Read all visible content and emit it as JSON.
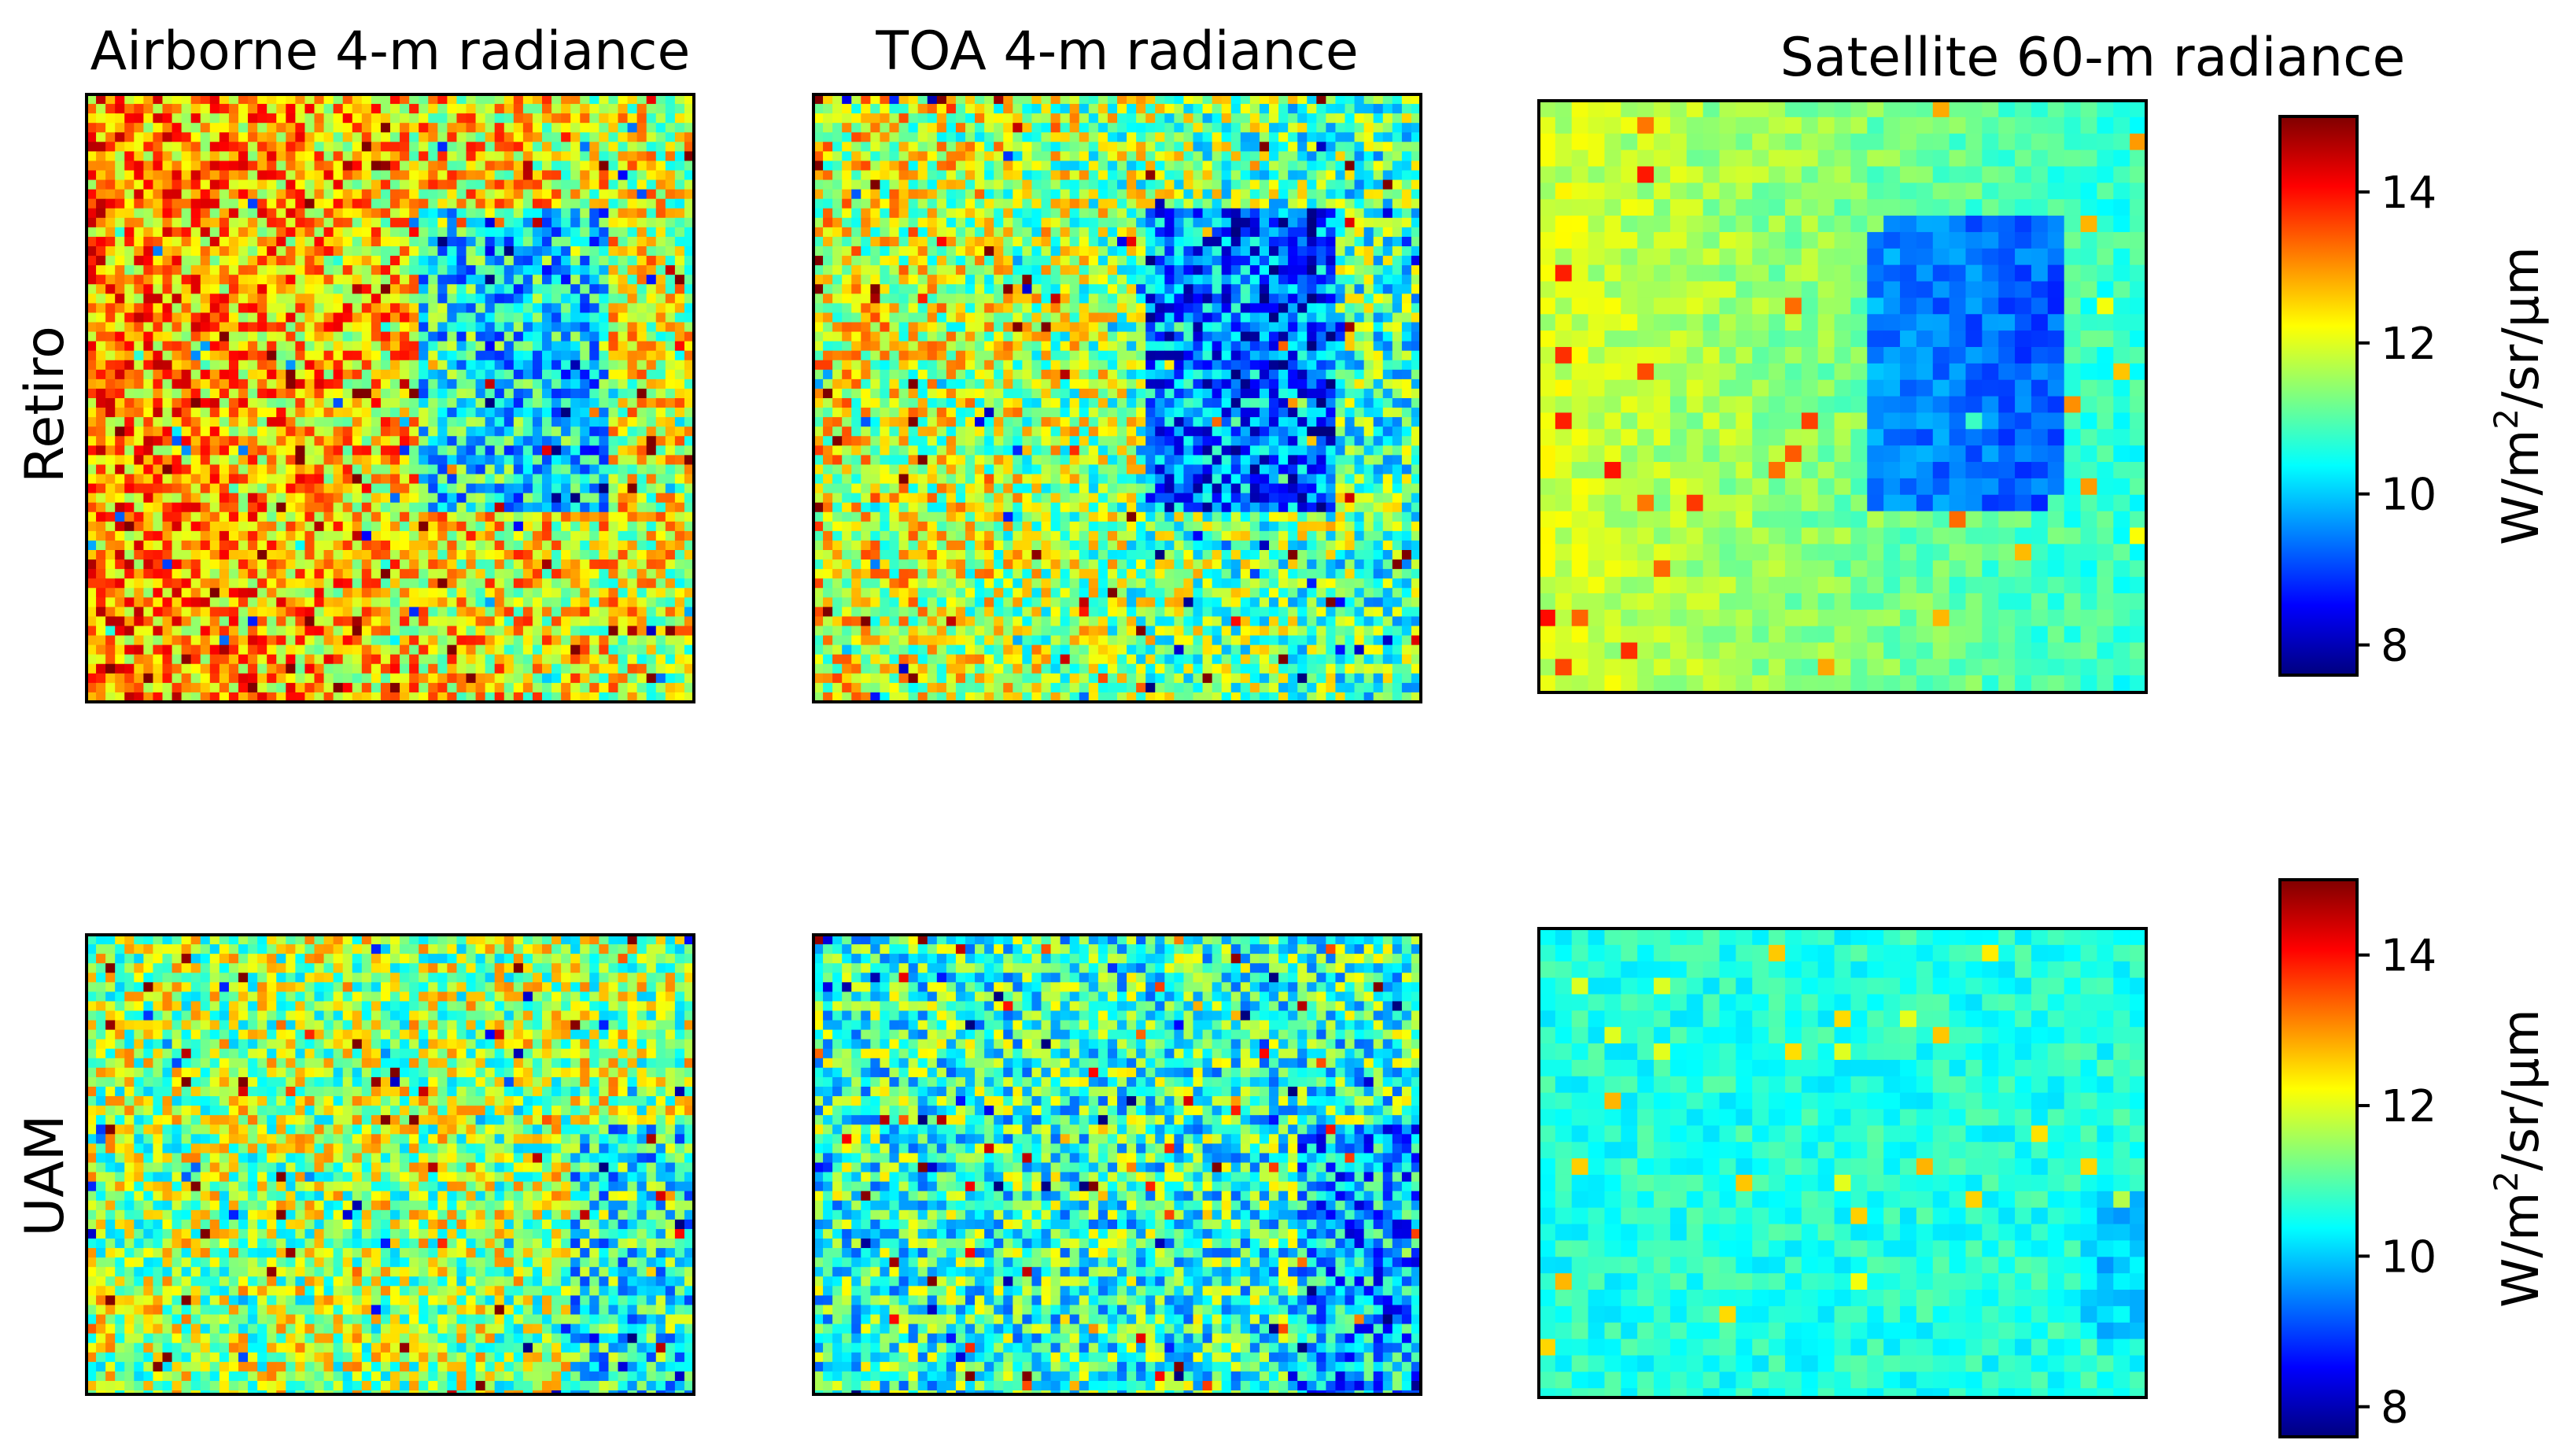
{
  "figure": {
    "column_titles": [
      "Airborne 4-m radiance",
      "TOA 4-m radiance",
      "Satellite 60-m radiance"
    ],
    "row_labels": [
      "Retiro",
      "UAM"
    ]
  },
  "colorbar": {
    "colormap": "jet",
    "vmin": 7.6,
    "vmax": 15.0,
    "ticks": [
      8,
      10,
      12,
      14
    ],
    "unit_base": "W/m",
    "unit_sup": "2",
    "unit_rest": "/sr/μm",
    "colors": [
      "#00007f",
      "#0000ff",
      "#007fff",
      "#00ffff",
      "#7fff7f",
      "#ffff00",
      "#ff7f00",
      "#ff0000",
      "#7f0000"
    ]
  },
  "chart_data": {
    "type": "heatmap",
    "title": "",
    "xlabel": "",
    "ylabel": "",
    "rows": [
      "Retiro",
      "UAM"
    ],
    "columns": [
      "Airborne 4-m radiance",
      "TOA 4-m radiance",
      "Satellite 60-m radiance"
    ],
    "value_range": [
      7.6,
      15.0
    ],
    "colorbar_label": "W/m2/sr/μm",
    "approx_mean_radiance": [
      {
        "row": "Retiro",
        "column": "Airborne 4-m radiance",
        "value": 12.5,
        "park": 10.5
      },
      {
        "row": "Retiro",
        "column": "TOA 4-m radiance",
        "value": 11.5,
        "park": 9.5
      },
      {
        "row": "Retiro",
        "column": "Satellite 60-m radiance",
        "value": 11.3,
        "park": 9.6
      },
      {
        "row": "UAM",
        "column": "Airborne 4-m radiance",
        "value": 11.6,
        "park": 10.5
      },
      {
        "row": "UAM",
        "column": "TOA 4-m radiance",
        "value": 10.8,
        "park": 9.8
      },
      {
        "row": "UAM",
        "column": "Satellite 60-m radiance",
        "value": 10.6,
        "park": 10.0
      }
    ]
  }
}
